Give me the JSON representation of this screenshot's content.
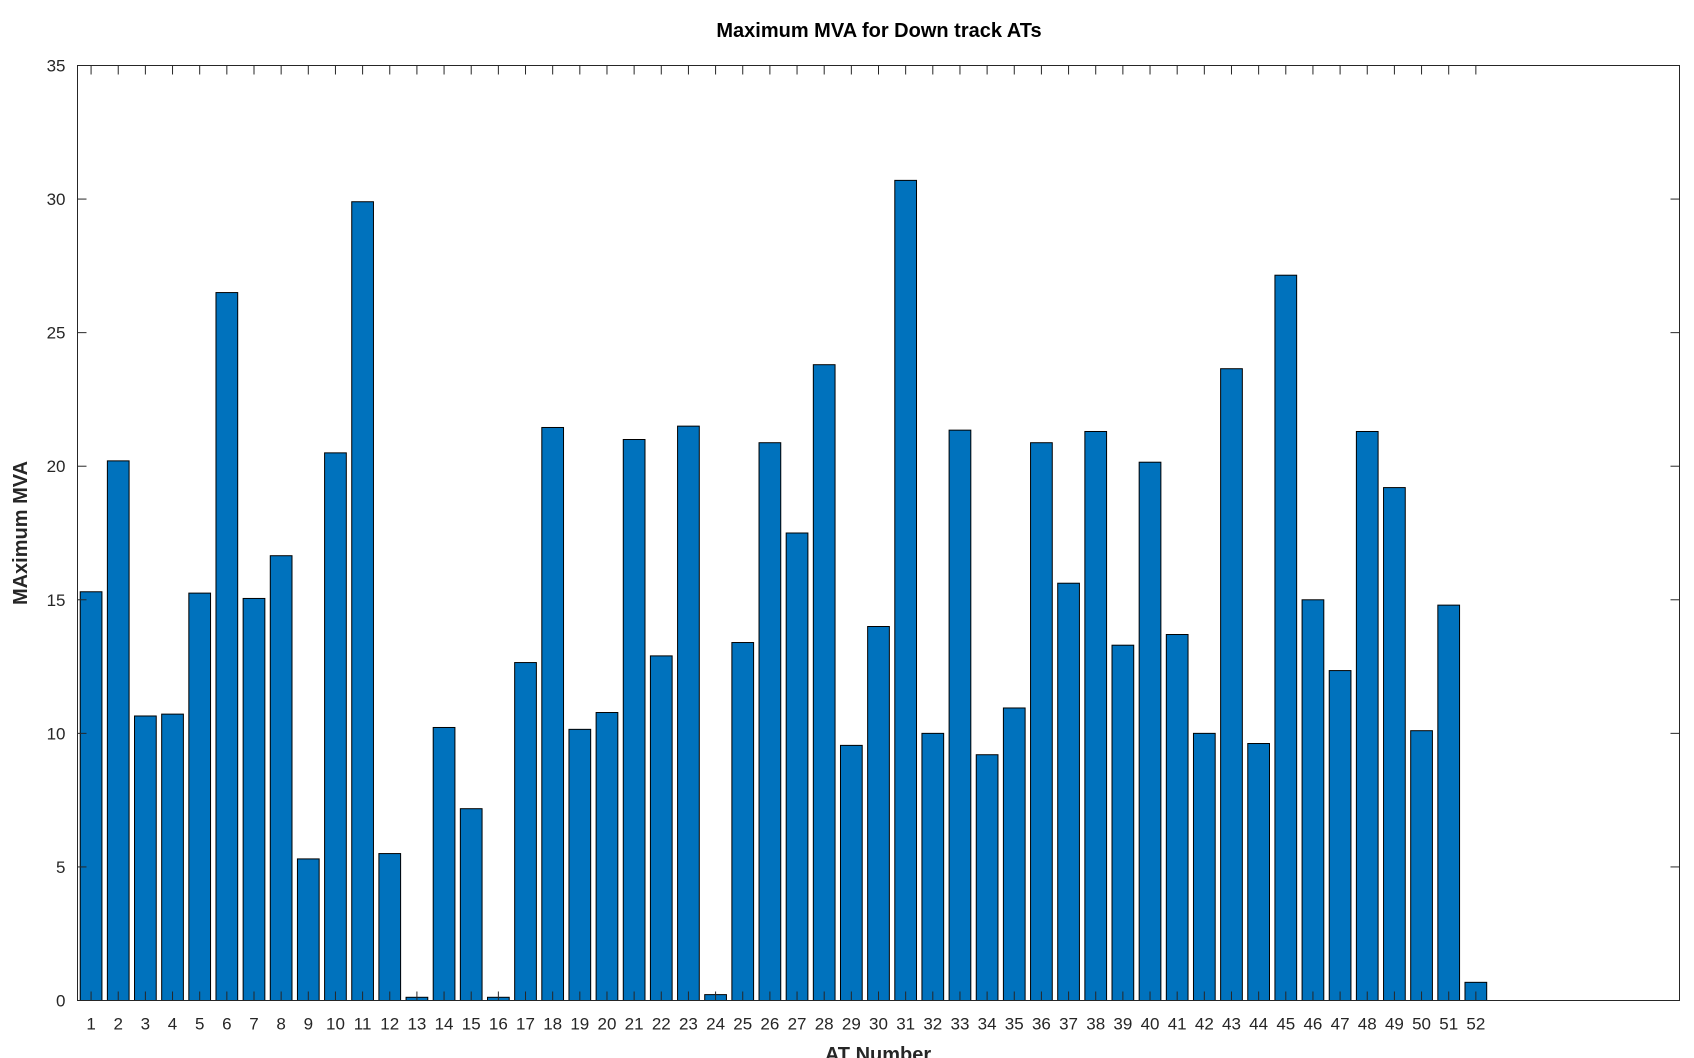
{
  "chart_data": {
    "type": "bar",
    "title": "Maximum MVA for Down track ATs",
    "xlabel": "AT Number",
    "ylabel": "MAximum MVA",
    "categories": [
      "1",
      "2",
      "3",
      "4",
      "5",
      "6",
      "7",
      "8",
      "9",
      "10",
      "11",
      "12",
      "13",
      "14",
      "15",
      "16",
      "17",
      "18",
      "19",
      "20",
      "21",
      "22",
      "23",
      "24",
      "25",
      "26",
      "27",
      "28",
      "29",
      "30",
      "31",
      "32",
      "33",
      "34",
      "35",
      "36",
      "37",
      "38",
      "39",
      "40",
      "41",
      "42",
      "43",
      "44",
      "45",
      "46",
      "47",
      "48",
      "49",
      "50",
      "51",
      "52"
    ],
    "values": [
      15.3,
      20.2,
      10.65,
      10.72,
      15.25,
      26.5,
      15.05,
      16.65,
      5.3,
      20.5,
      29.9,
      5.5,
      0.12,
      10.22,
      7.18,
      0.12,
      12.65,
      21.45,
      10.15,
      10.78,
      21.0,
      12.9,
      21.5,
      0.22,
      13.4,
      20.88,
      17.5,
      23.8,
      9.55,
      14.0,
      30.7,
      10.0,
      21.35,
      9.2,
      10.95,
      20.88,
      15.62,
      21.3,
      13.3,
      20.15,
      13.7,
      10.0,
      23.65,
      9.62,
      27.15,
      15.0,
      12.35,
      21.3,
      19.2,
      10.1,
      14.8,
      0.68
    ],
    "xlim": [
      0.5,
      59.5
    ],
    "ylim": [
      0,
      35
    ],
    "yticks": [
      0,
      5,
      10,
      15,
      20,
      25,
      30,
      35
    ],
    "grid": false,
    "bar_color": "#0072bd"
  }
}
